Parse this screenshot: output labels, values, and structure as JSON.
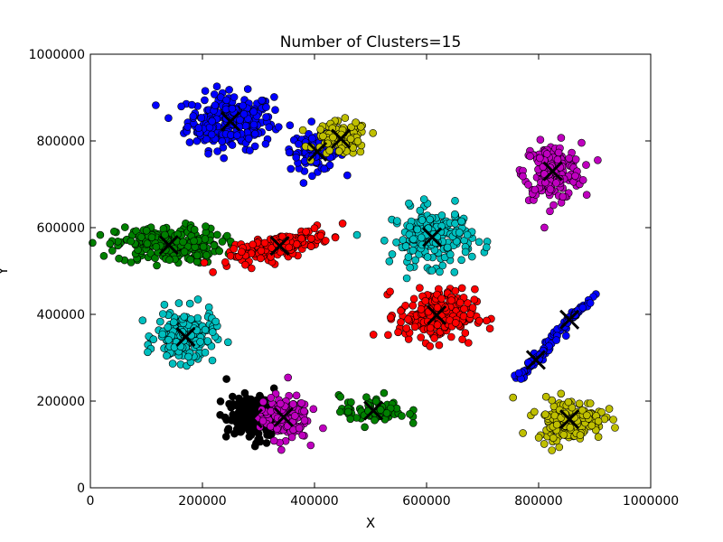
{
  "chart_data": {
    "type": "scatter",
    "title": "Number of Clusters=15",
    "xlabel": "X",
    "ylabel": "Y",
    "xlim": [
      0,
      1000000
    ],
    "ylim": [
      0,
      1000000
    ],
    "xticks": [
      0,
      200000,
      400000,
      600000,
      800000,
      1000000
    ],
    "yticks": [
      0,
      200000,
      400000,
      600000,
      800000,
      1000000
    ],
    "xtick_labels": [
      "0",
      "200000",
      "400000",
      "600000",
      "800000",
      "1000000"
    ],
    "ytick_labels": [
      "0",
      "200000",
      "400000",
      "600000",
      "800000",
      "1000000"
    ],
    "grid": false,
    "legend": "none",
    "series": [
      {
        "color": "#0000ff",
        "centroid": [
          250000,
          845000
        ],
        "spread": [
          45000,
          38000
        ],
        "rotation": 0,
        "count": 260
      },
      {
        "color": "#0000ff",
        "centroid": [
          405000,
          775000
        ],
        "spread": [
          28000,
          25000
        ],
        "rotation": 0,
        "count": 110
      },
      {
        "color": "#bfbf00",
        "centroid": [
          447000,
          805000
        ],
        "spread": [
          28000,
          23000
        ],
        "rotation": 0,
        "count": 110
      },
      {
        "color": "#bf00bf",
        "centroid": [
          825000,
          730000
        ],
        "spread": [
          30000,
          38000
        ],
        "rotation": 0,
        "count": 180
      },
      {
        "color": "#008000",
        "centroid": [
          140000,
          560000
        ],
        "spread": [
          55000,
          25000
        ],
        "rotation": 0,
        "count": 240
      },
      {
        "color": "#ff0000",
        "centroid": [
          338000,
          558000
        ],
        "spread": [
          55000,
          14000
        ],
        "rotation": 18,
        "count": 170
      },
      {
        "color": "#00bfbf",
        "centroid": [
          610000,
          578000
        ],
        "spread": [
          42000,
          38000
        ],
        "rotation": 0,
        "count": 200
      },
      {
        "color": "#00bfbf",
        "centroid": [
          170000,
          348000
        ],
        "spread": [
          30000,
          35000
        ],
        "rotation": 0,
        "count": 180
      },
      {
        "color": "#ff0000",
        "centroid": [
          618000,
          398000
        ],
        "spread": [
          40000,
          35000
        ],
        "rotation": 0,
        "count": 220
      },
      {
        "color": "#0000ff",
        "centroid": [
          855000,
          388000
        ],
        "spread": [
          45000,
          4000
        ],
        "rotation": 52,
        "count": 60
      },
      {
        "color": "#0000ff",
        "centroid": [
          795000,
          295000
        ],
        "spread": [
          32000,
          4500
        ],
        "rotation": 52,
        "count": 70
      },
      {
        "color": "#bfbf00",
        "centroid": [
          855000,
          158000
        ],
        "spread": [
          35000,
          28000
        ],
        "rotation": 0,
        "count": 180
      },
      {
        "color": "#000000",
        "centroid": [
          290000,
          160000
        ],
        "spread": [
          28000,
          30000
        ],
        "rotation": 0,
        "count": 180
      },
      {
        "color": "#bf00bf",
        "centroid": [
          345000,
          163000
        ],
        "spread": [
          25000,
          30000
        ],
        "rotation": 0,
        "count": 150
      },
      {
        "color": "#008000",
        "centroid": [
          505000,
          178000
        ],
        "spread": [
          35000,
          20000
        ],
        "rotation": 0,
        "count": 70
      }
    ],
    "centroid_marker": "x"
  }
}
